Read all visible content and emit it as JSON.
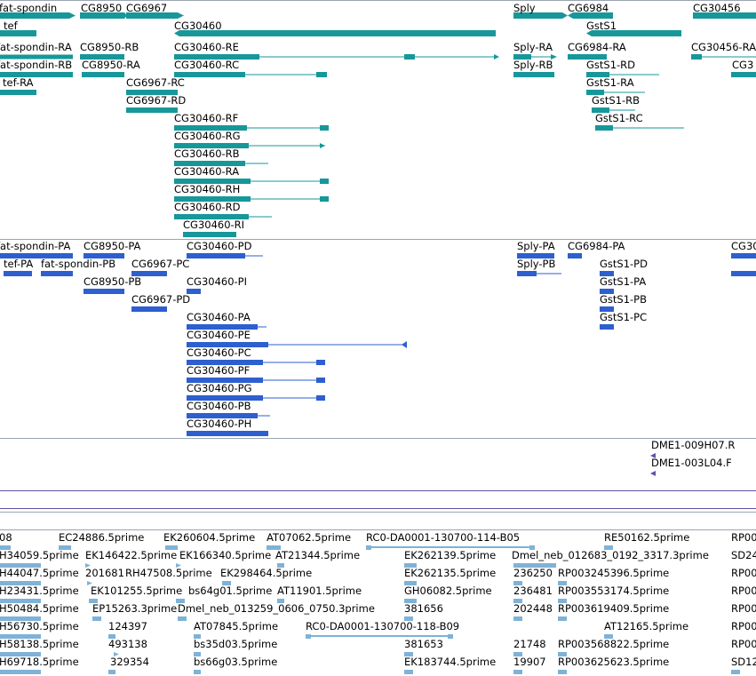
{
  "colors": {
    "teal": "#17979a",
    "blue": "#2d5fcf",
    "est": "#7fb2d6",
    "purple": "#5b52a8",
    "separator": "#9aa5b1"
  },
  "tracks": {
    "genes": {
      "items": [
        {
          "label": "fat-spondin"
        },
        {
          "label": "CG8950"
        },
        {
          "label": "CG6967"
        },
        {
          "label": "Sply"
        },
        {
          "label": "CG6984"
        },
        {
          "label": "CG30456"
        },
        {
          "label": "tef"
        },
        {
          "label": "CG30460"
        },
        {
          "label": "GstS1"
        }
      ]
    },
    "transcripts": {
      "items": [
        {
          "label": "fat-spondin-RA"
        },
        {
          "label": "CG8950-RB"
        },
        {
          "label": "CG30460-RE"
        },
        {
          "label": "Sply-RA"
        },
        {
          "label": "CG6984-RA"
        },
        {
          "label": "CG30456-RA"
        },
        {
          "label": "fat-spondin-RB"
        },
        {
          "label": "CG8950-RA"
        },
        {
          "label": "CG30460-RC"
        },
        {
          "label": "Sply-RB"
        },
        {
          "label": "GstS1-RD"
        },
        {
          "label": "CG3"
        },
        {
          "label": "tef-RA"
        },
        {
          "label": "CG6967-RC"
        },
        {
          "label": "GstS1-RA"
        },
        {
          "label": "CG6967-RD"
        },
        {
          "label": "GstS1-RB"
        },
        {
          "label": "CG30460-RF"
        },
        {
          "label": "GstS1-RC"
        },
        {
          "label": "CG30460-RG"
        },
        {
          "label": "CG30460-RB"
        },
        {
          "label": "CG30460-RA"
        },
        {
          "label": "CG30460-RH"
        },
        {
          "label": "CG30460-RD"
        },
        {
          "label": "CG30460-RI"
        }
      ]
    },
    "proteins": {
      "items": [
        {
          "label": "fat-spondin-PA"
        },
        {
          "label": "CG8950-PA"
        },
        {
          "label": "CG30460-PD"
        },
        {
          "label": "Sply-PA"
        },
        {
          "label": "CG6984-PA"
        },
        {
          "label": "CG30"
        },
        {
          "label": "tef-PA"
        },
        {
          "label": "fat-spondin-PB"
        },
        {
          "label": "CG6967-PC"
        },
        {
          "label": "Sply-PB"
        },
        {
          "label": "GstS1-PD"
        },
        {
          "label": "CG8950-PB"
        },
        {
          "label": "CG30460-PI"
        },
        {
          "label": "GstS1-PA"
        },
        {
          "label": "CG6967-PD"
        },
        {
          "label": "GstS1-PB"
        },
        {
          "label": "CG30460-PA"
        },
        {
          "label": "GstS1-PC"
        },
        {
          "label": "CG30460-PE"
        },
        {
          "label": "CG30460-PC"
        },
        {
          "label": "CG30460-PF"
        },
        {
          "label": "CG30460-PG"
        },
        {
          "label": "CG30460-PB"
        },
        {
          "label": "CG30460-PH"
        }
      ]
    },
    "clones": {
      "items": [
        {
          "label": "DME1-009H07.R"
        },
        {
          "label": "DME1-003L04.F"
        }
      ]
    },
    "ests": {
      "items": [
        {
          "label": "08"
        },
        {
          "label": "EC24886.5prime"
        },
        {
          "label": "EK260604.5prime"
        },
        {
          "label": "AT07062.5prime"
        },
        {
          "label": "RC0-DA0001-130700-114-B05"
        },
        {
          "label": "RE50162.5prime"
        },
        {
          "label": "RP00"
        },
        {
          "label": "H34059.5prime"
        },
        {
          "label": "EK146422.5prime"
        },
        {
          "label": "EK166340.5prime"
        },
        {
          "label": "AT21344.5prime"
        },
        {
          "label": "EK262139.5prime"
        },
        {
          "label": "Dmel_neb_012683_0192_3317.3prime"
        },
        {
          "label": "SD24"
        },
        {
          "label": "H44047.5prime"
        },
        {
          "label": "201681"
        },
        {
          "label": "RH47508.5prime"
        },
        {
          "label": "EK298464.5prime"
        },
        {
          "label": "EK262135.5prime"
        },
        {
          "label": "236250"
        },
        {
          "label": "RP003245396.5prime"
        },
        {
          "label": "RP00"
        },
        {
          "label": "H23431.5prime"
        },
        {
          "label": "EK101255.5prime"
        },
        {
          "label": "bs64g01.5prime"
        },
        {
          "label": "AT11901.5prime"
        },
        {
          "label": "GH06082.5prime"
        },
        {
          "label": "236481"
        },
        {
          "label": "RP003553174.5prime"
        },
        {
          "label": "RP00"
        },
        {
          "label": "H50484.5prime"
        },
        {
          "label": "EP15263.3prime"
        },
        {
          "label": "Dmel_neb_013259_0606_0750.3prime"
        },
        {
          "label": "381656"
        },
        {
          "label": "202448"
        },
        {
          "label": "RP003619409.5prime"
        },
        {
          "label": "RP00"
        },
        {
          "label": "H56730.5prime"
        },
        {
          "label": "124397"
        },
        {
          "label": "AT07845.5prime"
        },
        {
          "label": "RC0-DA0001-130700-118-B09"
        },
        {
          "label": "AT12165.5prime"
        },
        {
          "label": "RP00"
        },
        {
          "label": "H58138.5prime"
        },
        {
          "label": "493138"
        },
        {
          "label": "bs35d03.5prime"
        },
        {
          "label": "381653"
        },
        {
          "label": "21748"
        },
        {
          "label": "RP003568822.5prime"
        },
        {
          "label": "RP00"
        },
        {
          "label": "H69718.5prime"
        },
        {
          "label": "329354"
        },
        {
          "label": "bs66g03.5prime"
        },
        {
          "label": "EK183744.5prime"
        },
        {
          "label": "19907"
        },
        {
          "label": "RP003625623.5prime"
        },
        {
          "label": "SD12"
        }
      ]
    }
  }
}
